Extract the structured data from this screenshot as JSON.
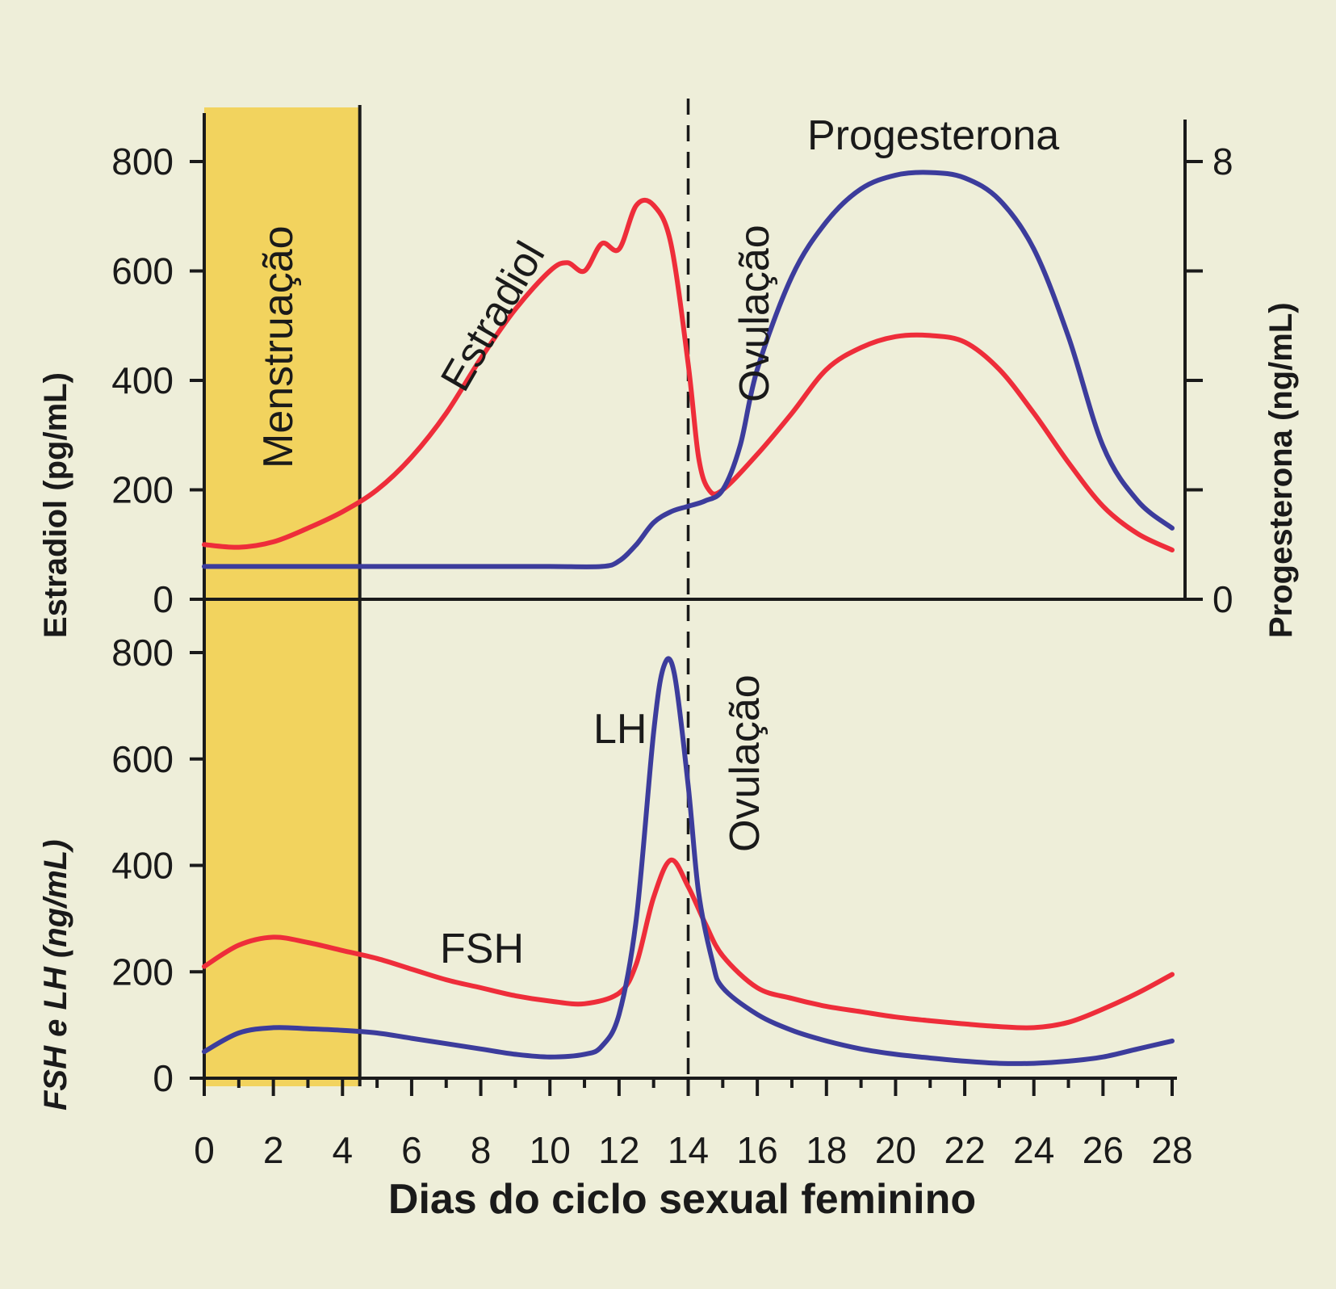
{
  "chart_data": [
    {
      "type": "line",
      "panel": "top",
      "ylabel": "Estradiol (pg/mL)",
      "ylabel_right": "Progesterona (ng/mL)",
      "xlim": [
        0,
        28
      ],
      "ylim": [
        0,
        800
      ],
      "ylim_right": [
        0,
        8
      ],
      "yticks": [
        "0",
        "200",
        "400",
        "600",
        "800"
      ],
      "yticks_right": [
        "0",
        "8"
      ],
      "series": [
        {
          "name": "Estradiol",
          "axis": "left",
          "color": "#ee2d3a",
          "x": [
            0,
            1,
            2,
            3,
            4,
            5,
            6,
            7,
            8,
            9,
            10,
            10.5,
            11,
            11.5,
            12,
            12.5,
            13,
            13.5,
            14,
            14.3,
            14.6,
            15,
            16,
            17,
            18,
            19,
            20,
            21,
            22,
            23,
            24,
            25,
            26,
            27,
            28
          ],
          "y": [
            100,
            95,
            105,
            130,
            160,
            200,
            260,
            340,
            440,
            530,
            600,
            615,
            600,
            650,
            640,
            720,
            720,
            650,
            430,
            260,
            200,
            200,
            265,
            340,
            420,
            460,
            480,
            482,
            470,
            420,
            340,
            250,
            170,
            120,
            90
          ]
        },
        {
          "name": "Progesterona",
          "axis": "right",
          "color": "#3c3c9c",
          "x": [
            0,
            2,
            4,
            6,
            8,
            10,
            11.5,
            12,
            12.5,
            13,
            13.5,
            14,
            14.5,
            15,
            15.5,
            16,
            17,
            18,
            19,
            20,
            21,
            22,
            23,
            24,
            25,
            26,
            27,
            28
          ],
          "y": [
            0.6,
            0.6,
            0.6,
            0.6,
            0.6,
            0.6,
            0.6,
            0.7,
            1.0,
            1.4,
            1.6,
            1.7,
            1.8,
            2.0,
            2.8,
            4.2,
            5.9,
            6.9,
            7.5,
            7.75,
            7.8,
            7.7,
            7.3,
            6.4,
            4.8,
            2.8,
            1.8,
            1.3
          ]
        }
      ],
      "annotations": [
        "Estradiol",
        "Progesterona",
        "Ovulação",
        "Menstruação"
      ]
    },
    {
      "type": "line",
      "panel": "bottom",
      "ylabel": "FSH e LH (ng/mL)",
      "xlabel": "Dias do ciclo sexual feminino",
      "xlim": [
        0,
        28
      ],
      "ylim": [
        0,
        800
      ],
      "xticks": [
        "0",
        "2",
        "4",
        "6",
        "8",
        "10",
        "12",
        "14",
        "16",
        "18",
        "20",
        "22",
        "24",
        "26",
        "28"
      ],
      "yticks": [
        "0",
        "200",
        "400",
        "600",
        "800"
      ],
      "series": [
        {
          "name": "FSH",
          "color": "#ee2d3a",
          "x": [
            0,
            1,
            2,
            3,
            4,
            5,
            6,
            7,
            8,
            9,
            10,
            11,
            12,
            12.5,
            13,
            13.5,
            14,
            14.5,
            15,
            16,
            17,
            18,
            19,
            20,
            21,
            22,
            23,
            24,
            25,
            26,
            27,
            28
          ],
          "y": [
            210,
            250,
            265,
            255,
            240,
            225,
            205,
            185,
            170,
            155,
            145,
            140,
            160,
            215,
            340,
            410,
            360,
            290,
            230,
            170,
            150,
            135,
            125,
            115,
            108,
            102,
            97,
            95,
            105,
            130,
            160,
            195
          ]
        },
        {
          "name": "LH",
          "color": "#3c3c9c",
          "x": [
            0,
            1,
            2,
            3,
            4,
            5,
            6,
            7,
            8,
            9,
            10,
            11,
            11.5,
            12,
            12.5,
            13,
            13.3,
            13.6,
            14,
            14.3,
            14.7,
            15,
            16,
            17,
            18,
            19,
            20,
            21,
            22,
            23,
            24,
            25,
            26,
            27,
            28
          ],
          "y": [
            50,
            85,
            95,
            93,
            90,
            85,
            75,
            65,
            55,
            45,
            40,
            45,
            60,
            120,
            300,
            650,
            775,
            760,
            550,
            350,
            220,
            170,
            120,
            90,
            70,
            55,
            45,
            38,
            32,
            28,
            28,
            32,
            40,
            55,
            70
          ]
        }
      ],
      "annotations": [
        "LH",
        "FSH",
        "Ovulação",
        "Menstruação"
      ]
    }
  ],
  "labels": {
    "estradiol_axis": "Estradiol (pg/mL)",
    "fsh_lh_axis": "FSH e LH (ng/mL)",
    "progesterone_axis": "Progesterona (ng/mL)",
    "x_axis": "Dias do ciclo sexual feminino",
    "menstruation": "Menstruação",
    "ovulation_top": "Ovulação",
    "ovulation_bottom": "Ovulação",
    "estradiol": "Estradiol",
    "progesterone": "Progesterona",
    "lh": "LH",
    "fsh": "FSH"
  },
  "yticks_left": [
    "0",
    "200",
    "400",
    "600",
    "800"
  ],
  "yticks_left_bottom": [
    "0",
    "200",
    "400",
    "600",
    "800"
  ],
  "yticks_right": [
    "0",
    "8"
  ],
  "xticks": [
    "0",
    "2",
    "4",
    "6",
    "8",
    "10",
    "12",
    "14",
    "16",
    "18",
    "20",
    "22",
    "24",
    "26",
    "28"
  ],
  "menstruation_days": [
    0,
    4.5
  ],
  "ovulation_day": 14,
  "colors": {
    "background": "#eeeed9",
    "menstruation_band": "#f2d35e",
    "red": "#ee2d3a",
    "blue": "#3c3c9c",
    "axis": "#1a1a1a"
  }
}
